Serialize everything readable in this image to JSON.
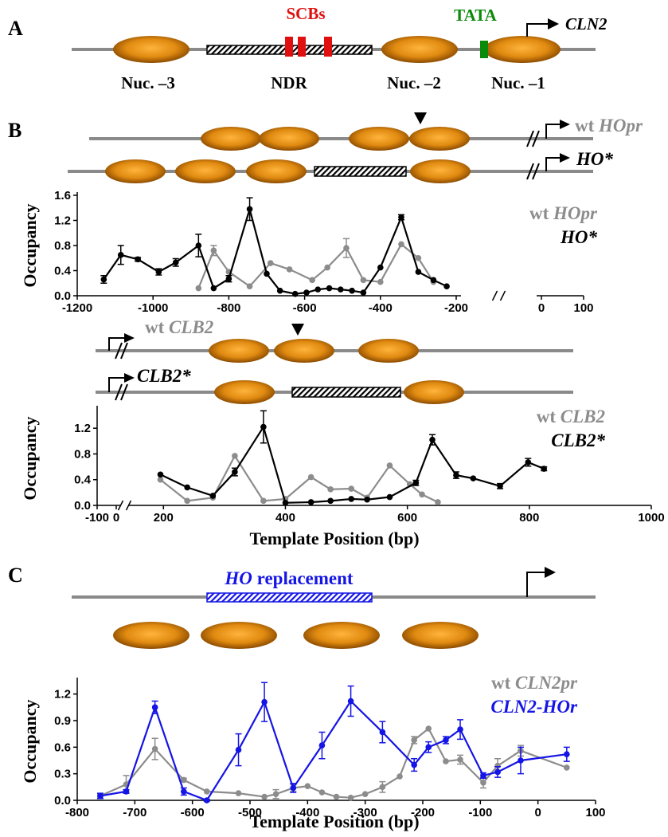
{
  "panels": {
    "a": {
      "label": "A",
      "scbs": "SCBs",
      "tata": "TATA",
      "gene": "CLN2",
      "labels": [
        "Nuc. –3",
        "NDR",
        "Nuc. –2",
        "Nuc. –1"
      ]
    },
    "b": {
      "label": "B",
      "ho_wt": "wt HOpr",
      "ho_mut": "HO*",
      "clb2_wt": "wt CLB2",
      "clb2_mut": "CLB2*"
    },
    "c": {
      "label": "C",
      "replacement": "HO replacement"
    }
  },
  "chart_data": [
    {
      "type": "line",
      "y_label": "Occupancy",
      "legend": "upper right",
      "ylim": [
        0,
        1.6
      ],
      "yticks": [
        {
          "value": 0,
          "label": "0.0"
        },
        0.4,
        0.8,
        1.2,
        1.6
      ],
      "xlim": [
        -1200,
        100
      ],
      "x_break": [
        -200,
        0
      ],
      "xticks": [
        -1200,
        -1000,
        -800,
        -600,
        -400,
        -200,
        0,
        100
      ],
      "series": [
        {
          "name": "wt HOpr",
          "color": "#8c8c8c",
          "x": [
            -880,
            -840,
            -800,
            -745,
            -690,
            -640,
            -580,
            -540,
            -490,
            -445,
            -400,
            -345,
            -300,
            -260
          ],
          "values": [
            0.12,
            0.72,
            0.38,
            0.15,
            0.52,
            0.42,
            0.25,
            0.45,
            0.76,
            0.25,
            0.22,
            0.82,
            0.6,
            0.22
          ],
          "errors": [
            null,
            0.08,
            null,
            null,
            null,
            null,
            null,
            null,
            0.15,
            null,
            null,
            null,
            null,
            null
          ]
        },
        {
          "name": "HO*",
          "color": "#000000",
          "x": [
            -1130,
            -1085,
            -1040,
            -985,
            -940,
            -880,
            -840,
            -800,
            -745,
            -700,
            -665,
            -625,
            -595,
            -565,
            -535,
            -505,
            -475,
            -445,
            -400,
            -345,
            -300,
            -260,
            -225
          ],
          "values": [
            0.26,
            0.65,
            0.58,
            0.38,
            0.53,
            0.8,
            0.12,
            0.27,
            1.38,
            0.35,
            0.08,
            0.03,
            0.05,
            0.1,
            0.12,
            0.1,
            0.08,
            0.05,
            0.45,
            1.25,
            0.38,
            0.25,
            0.15
          ],
          "errors": [
            0.06,
            0.15,
            0.03,
            0.05,
            0.06,
            0.18,
            null,
            0.05,
            0.18,
            null,
            null,
            null,
            null,
            null,
            null,
            null,
            null,
            null,
            null,
            0.04,
            null,
            null,
            null
          ]
        }
      ]
    },
    {
      "type": "line",
      "y_label": "Occupancy",
      "x_label": "Template Position (bp)",
      "legend": "upper right",
      "ylim": [
        0,
        1.5
      ],
      "yticks": [
        {
          "value": 0,
          "label": "0.0"
        },
        0.4,
        0.8,
        1.2
      ],
      "xlim": [
        -100,
        1000
      ],
      "x_break": [
        0,
        150
      ],
      "xticks": [
        -100,
        0,
        200,
        400,
        600,
        800,
        1000
      ],
      "series": [
        {
          "name": "wt CLB2",
          "color": "#8c8c8c",
          "x": [
            195,
            239,
            281,
            317,
            364,
            400,
            442,
            474,
            508,
            534,
            571,
            604,
            624,
            650
          ],
          "values": [
            0.4,
            0.07,
            0.12,
            0.77,
            0.07,
            0.1,
            0.44,
            0.25,
            0.26,
            0.12,
            0.62,
            0.33,
            0.17,
            0.05
          ]
        },
        {
          "name": "CLB2*",
          "color": "#000000",
          "x": [
            195,
            239,
            281,
            317,
            364,
            400,
            442,
            474,
            508,
            534,
            571,
            614,
            641,
            680,
            708,
            752,
            798,
            824
          ],
          "values": [
            0.48,
            0.28,
            0.15,
            0.52,
            1.22,
            0.04,
            0.05,
            0.07,
            0.1,
            0.09,
            0.13,
            0.35,
            1.02,
            0.47,
            0.42,
            0.3,
            0.67,
            0.57
          ],
          "errors": [
            null,
            null,
            null,
            0.06,
            0.25,
            null,
            null,
            null,
            null,
            null,
            null,
            0.04,
            0.08,
            0.05,
            null,
            0.04,
            0.06,
            0.03
          ]
        }
      ]
    },
    {
      "type": "line",
      "y_label": "Occupancy",
      "x_label": "Template Position (bp)",
      "legend": "upper right",
      "ylim": [
        0,
        1.35
      ],
      "yticks": [
        {
          "value": 0,
          "label": "0.0"
        },
        0.3,
        0.6,
        0.9,
        1.2
      ],
      "xlim": [
        -800,
        100
      ],
      "xticks": [
        -800,
        -700,
        -600,
        -500,
        -400,
        -300,
        -200,
        -100,
        0,
        100
      ],
      "series": [
        {
          "name": "wt CLN2pr",
          "color": "#8c8c8c",
          "x": [
            -760,
            -715,
            -665,
            -615,
            -575,
            -520,
            -475,
            -455,
            -425,
            -400,
            -375,
            -350,
            -325,
            -300,
            -270,
            -240,
            -215,
            -190,
            -160,
            -135,
            -95,
            -70,
            -30,
            50
          ],
          "values": [
            0.05,
            0.18,
            0.58,
            0.23,
            0.1,
            0.08,
            0.04,
            0.07,
            0.14,
            0.16,
            0.09,
            0.04,
            0.03,
            0.07,
            0.15,
            0.27,
            0.68,
            0.81,
            0.44,
            0.46,
            0.2,
            0.39,
            0.56,
            0.37
          ],
          "errors": [
            0.02,
            0.1,
            0.12,
            0.02,
            null,
            null,
            null,
            0.05,
            0.04,
            null,
            null,
            null,
            null,
            null,
            0.06,
            null,
            0.04,
            null,
            null,
            0.05,
            0.06,
            0.08,
            0.06,
            null
          ]
        },
        {
          "name": "CLN2-HOr",
          "color": "#1414e6",
          "x": [
            -760,
            -715,
            -665,
            -615,
            -575,
            -520,
            -475,
            -425,
            -375,
            -325,
            -270,
            -215,
            -190,
            -160,
            -135,
            -95,
            -70,
            -30,
            50
          ],
          "values": [
            0.05,
            0.1,
            1.05,
            0.1,
            0,
            0.57,
            1.11,
            0.14,
            0.62,
            1.12,
            0.77,
            0.4,
            0.6,
            0.68,
            0.8,
            0.28,
            0.32,
            0.45,
            0.52
          ],
          "errors": [
            0.03,
            0.02,
            0.07,
            0.04,
            0.01,
            0.18,
            0.22,
            0.05,
            0.15,
            0.17,
            0.12,
            0.07,
            0.06,
            0.04,
            0.11,
            0.03,
            0.06,
            0.15,
            0.08
          ]
        }
      ]
    }
  ]
}
